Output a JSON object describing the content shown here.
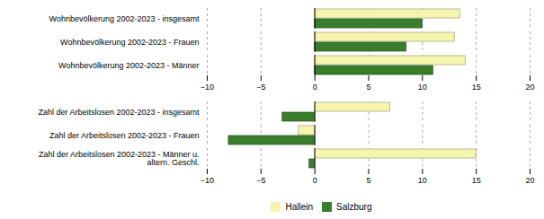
{
  "chart_data": {
    "type": "bar",
    "orientation": "horizontal",
    "categories": [
      "Wohnbevölkerung 2002-2023 - insgesamt",
      "Wohnbevölkerung 2002-2023 - Frauen",
      "Wohnbevölkerung 2002-2023 - Männer",
      null,
      "Zahl der Arbeitslosen 2002-2023 - insgesamt",
      "Zahl der Arbeitslosen 2002-2023 - Frauen",
      "Zahl der Arbeitslosen 2002-2023 - Männer u.\naltern. Geschl."
    ],
    "series": [
      {
        "name": "Hallein",
        "color": "#f5f5b0",
        "values": [
          13.5,
          13.0,
          14.0,
          null,
          7.0,
          -1.5,
          15.0
        ]
      },
      {
        "name": "Salzburg",
        "color": "#3a7d2c",
        "values": [
          10.0,
          8.5,
          11.0,
          null,
          -3.0,
          -8.0,
          -0.5
        ]
      }
    ],
    "xlim": [
      -10,
      20
    ],
    "xticks": [
      -10,
      -5,
      0,
      5,
      10,
      15,
      20
    ],
    "grid": true,
    "legend": "bottom"
  }
}
